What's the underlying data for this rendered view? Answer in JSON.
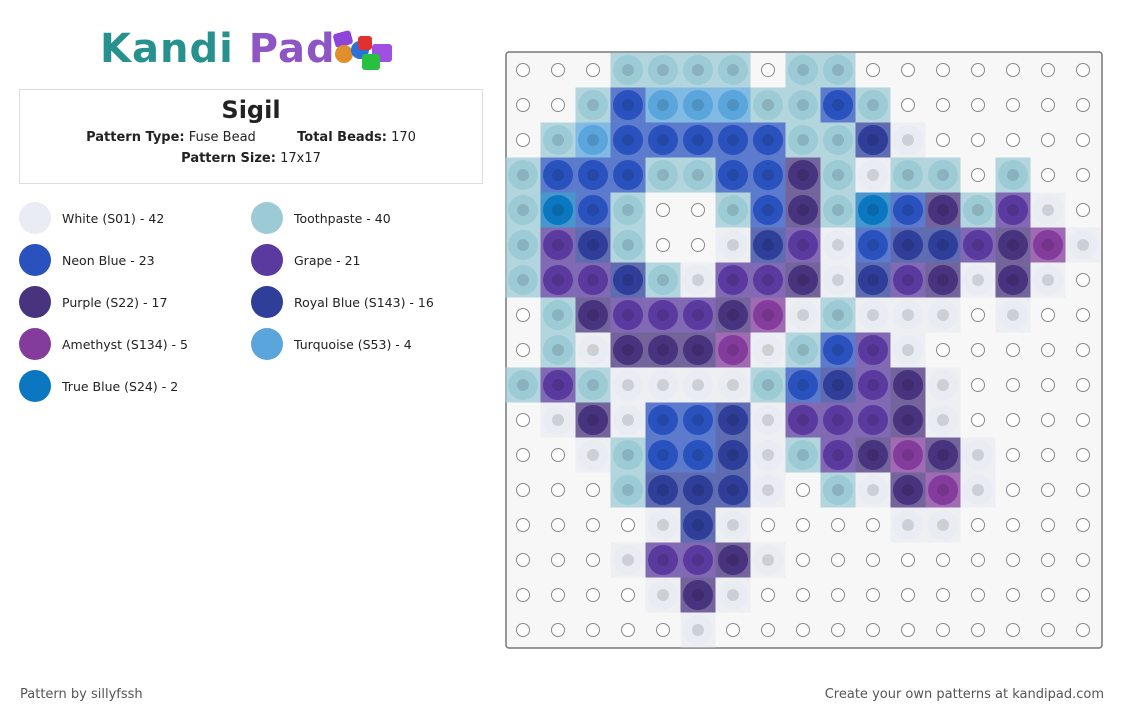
{
  "header": {
    "title": "Sigil",
    "pattern_type_label": "Pattern Type:",
    "pattern_type": "Fuse Bead",
    "total_beads_label": "Total Beads:",
    "total_beads": "170",
    "pattern_size_label": "Pattern Size:",
    "pattern_size": "17x17"
  },
  "legend": [
    {
      "label": "White (S01) - 42",
      "color": "#e9ecf2"
    },
    {
      "label": "Toothpaste - 40",
      "color": "#9ccbd6"
    },
    {
      "label": "Neon Blue - 23",
      "color": "#2a52be"
    },
    {
      "label": "Grape - 21",
      "color": "#5a3a9e"
    },
    {
      "label": "Purple (S22) - 17",
      "color": "#47337e"
    },
    {
      "label": "Royal Blue (S143) - 16",
      "color": "#2e3e99"
    },
    {
      "label": "Amethyst (S134) - 5",
      "color": "#833c9c"
    },
    {
      "label": "Turquoise (S53) - 4",
      "color": "#5aa5dc"
    },
    {
      "label": "True Blue (S24) - 2",
      "color": "#0b77c0"
    }
  ],
  "footer": {
    "author": "Pattern by sillyfssh",
    "link": "Create your own patterns at kandipad.com"
  }
}
